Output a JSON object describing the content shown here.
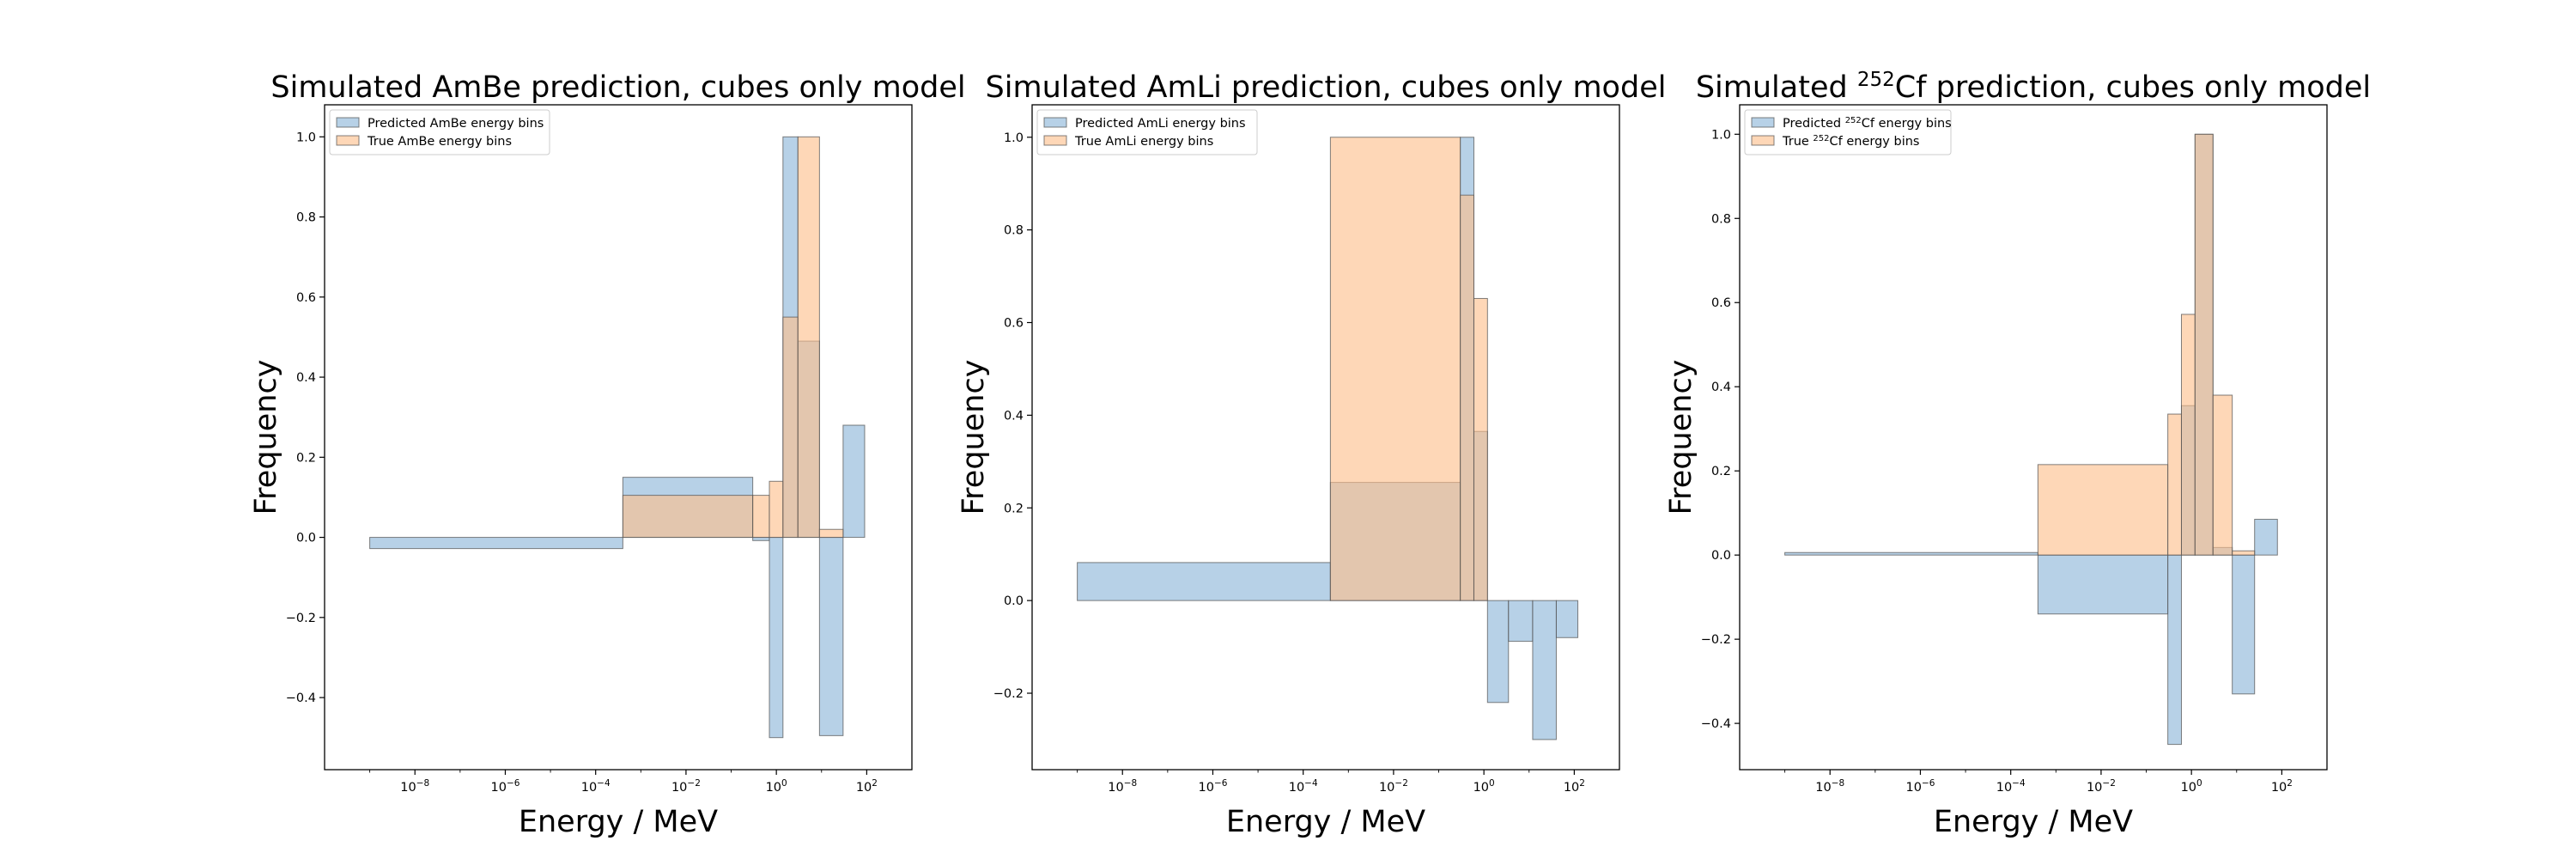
{
  "chart_data": [
    {
      "type": "bar",
      "title": "Simulated AmBe prediction, cubes only model",
      "xlabel": "Energy / MeV",
      "ylabel": "Frequency",
      "x_scale": "log",
      "xlim": [
        1e-10,
        1000
      ],
      "ylim": [
        -0.58,
        1.08
      ],
      "x_ticks": [
        {
          "value": 1e-08,
          "base": "10",
          "exp": "−8"
        },
        {
          "value": 1e-06,
          "base": "10",
          "exp": "−6"
        },
        {
          "value": 0.0001,
          "base": "10",
          "exp": "−4"
        },
        {
          "value": 0.01,
          "base": "10",
          "exp": "−2"
        },
        {
          "value": 1,
          "base": "10",
          "exp": "0"
        },
        {
          "value": 100,
          "base": "10",
          "exp": "2"
        }
      ],
      "y_ticks": [
        {
          "value": -0.4,
          "label": "−0.4"
        },
        {
          "value": -0.2,
          "label": "−0.2"
        },
        {
          "value": 0,
          "label": "0.0"
        },
        {
          "value": 0.2,
          "label": "0.2"
        },
        {
          "value": 0.4,
          "label": "0.4"
        },
        {
          "value": 0.6,
          "label": "0.6"
        },
        {
          "value": 0.8,
          "label": "0.8"
        },
        {
          "value": 1.0,
          "label": "1.0"
        }
      ],
      "legend_position": "upper left",
      "series": [
        {
          "name": "Predicted AmBe energy bins",
          "color": "#8ab4d8",
          "bars": [
            {
              "x0": 1e-09,
              "x1": 0.0004,
              "value": -0.028
            },
            {
              "x0": 0.0004,
              "x1": 0.3,
              "value": 0.15
            },
            {
              "x0": 0.3,
              "x1": 0.7,
              "value": -0.008
            },
            {
              "x0": 0.7,
              "x1": 1.4,
              "value": -0.5
            },
            {
              "x0": 1.4,
              "x1": 3.0,
              "value": 1.0
            },
            {
              "x0": 3.0,
              "x1": 9.0,
              "value": 0.49
            },
            {
              "x0": 9.0,
              "x1": 30,
              "value": -0.495
            },
            {
              "x0": 30,
              "x1": 90,
              "value": 0.28
            }
          ]
        },
        {
          "name": "True AmBe energy bins",
          "color": "#fdbf8a",
          "bars": [
            {
              "x0": 0.0004,
              "x1": 0.3,
              "value": 0.105
            },
            {
              "x0": 0.3,
              "x1": 0.7,
              "value": 0.105
            },
            {
              "x0": 0.7,
              "x1": 1.4,
              "value": 0.14
            },
            {
              "x0": 1.4,
              "x1": 3.0,
              "value": 0.55
            },
            {
              "x0": 3.0,
              "x1": 9.0,
              "value": 1.0
            },
            {
              "x0": 9.0,
              "x1": 30,
              "value": 0.02
            }
          ]
        }
      ]
    },
    {
      "type": "bar",
      "title": "Simulated AmLi prediction, cubes only model",
      "xlabel": "Energy / MeV",
      "ylabel": "Frequency",
      "x_scale": "log",
      "xlim": [
        1e-10,
        1000
      ],
      "ylim": [
        -0.365,
        1.07
      ],
      "x_ticks": [
        {
          "value": 1e-08,
          "base": "10",
          "exp": "−8"
        },
        {
          "value": 1e-06,
          "base": "10",
          "exp": "−6"
        },
        {
          "value": 0.0001,
          "base": "10",
          "exp": "−4"
        },
        {
          "value": 0.01,
          "base": "10",
          "exp": "−2"
        },
        {
          "value": 1,
          "base": "10",
          "exp": "0"
        },
        {
          "value": 100,
          "base": "10",
          "exp": "2"
        }
      ],
      "y_ticks": [
        {
          "value": -0.2,
          "label": "−0.2"
        },
        {
          "value": 0,
          "label": "0.0"
        },
        {
          "value": 0.2,
          "label": "0.2"
        },
        {
          "value": 0.4,
          "label": "0.4"
        },
        {
          "value": 0.6,
          "label": "0.6"
        },
        {
          "value": 0.8,
          "label": "0.8"
        },
        {
          "value": 1.0,
          "label": "1.0"
        }
      ],
      "legend_position": "upper left",
      "series": [
        {
          "name": "Predicted AmLi energy bins",
          "color": "#8ab4d8",
          "bars": [
            {
              "x0": 1e-09,
              "x1": 0.0004,
              "value": 0.082
            },
            {
              "x0": 0.0004,
              "x1": 0.3,
              "value": 0.255
            },
            {
              "x0": 0.3,
              "x1": 0.6,
              "value": 1.0
            },
            {
              "x0": 0.6,
              "x1": 1.2,
              "value": 0.365
            },
            {
              "x0": 1.2,
              "x1": 3.5,
              "value": -0.22
            },
            {
              "x0": 3.5,
              "x1": 12,
              "value": -0.088
            },
            {
              "x0": 12,
              "x1": 40,
              "value": -0.3
            },
            {
              "x0": 40,
              "x1": 120,
              "value": -0.08
            }
          ]
        },
        {
          "name": "True AmLi energy bins",
          "color": "#fdbf8a",
          "bars": [
            {
              "x0": 0.0004,
              "x1": 0.3,
              "value": 1.0
            },
            {
              "x0": 0.3,
              "x1": 0.6,
              "value": 0.875
            },
            {
              "x0": 0.6,
              "x1": 1.2,
              "value": 0.652
            }
          ]
        }
      ]
    },
    {
      "type": "bar",
      "title_parts": {
        "pre": "Simulated ",
        "sup": "252",
        "post": "Cf prediction, cubes only model"
      },
      "xlabel": "Energy / MeV",
      "ylabel": "Frequency",
      "x_scale": "log",
      "xlim": [
        1e-10,
        1000
      ],
      "ylim": [
        -0.51,
        1.07
      ],
      "x_ticks": [
        {
          "value": 1e-08,
          "base": "10",
          "exp": "−8"
        },
        {
          "value": 1e-06,
          "base": "10",
          "exp": "−6"
        },
        {
          "value": 0.0001,
          "base": "10",
          "exp": "−4"
        },
        {
          "value": 0.01,
          "base": "10",
          "exp": "−2"
        },
        {
          "value": 1,
          "base": "10",
          "exp": "0"
        },
        {
          "value": 100,
          "base": "10",
          "exp": "2"
        }
      ],
      "y_ticks": [
        {
          "value": -0.4,
          "label": "−0.4"
        },
        {
          "value": -0.2,
          "label": "−0.2"
        },
        {
          "value": 0,
          "label": "0.0"
        },
        {
          "value": 0.2,
          "label": "0.2"
        },
        {
          "value": 0.4,
          "label": "0.4"
        },
        {
          "value": 0.6,
          "label": "0.6"
        },
        {
          "value": 0.8,
          "label": "0.8"
        },
        {
          "value": 1.0,
          "label": "1.0"
        }
      ],
      "legend_position": "upper left",
      "series": [
        {
          "name_parts": {
            "pre": "Predicted ",
            "sup": "252",
            "post": "Cf energy bins"
          },
          "color": "#8ab4d8",
          "bars": [
            {
              "x0": 1e-09,
              "x1": 0.0004,
              "value": 0.006
            },
            {
              "x0": 0.0004,
              "x1": 0.3,
              "value": -0.14
            },
            {
              "x0": 0.3,
              "x1": 0.6,
              "value": -0.45
            },
            {
              "x0": 0.6,
              "x1": 1.2,
              "value": 0.355
            },
            {
              "x0": 1.2,
              "x1": 3.0,
              "value": 1.0
            },
            {
              "x0": 3.0,
              "x1": 8.0,
              "value": 0.018
            },
            {
              "x0": 8.0,
              "x1": 25,
              "value": -0.33
            },
            {
              "x0": 25,
              "x1": 80,
              "value": 0.085
            }
          ]
        },
        {
          "name_parts": {
            "pre": "True ",
            "sup": "252",
            "post": "Cf energy bins"
          },
          "color": "#fdbf8a",
          "bars": [
            {
              "x0": 0.0004,
              "x1": 0.3,
              "value": 0.215
            },
            {
              "x0": 0.3,
              "x1": 0.6,
              "value": 0.335
            },
            {
              "x0": 0.6,
              "x1": 1.2,
              "value": 0.572
            },
            {
              "x0": 1.2,
              "x1": 3.0,
              "value": 1.0
            },
            {
              "x0": 3.0,
              "x1": 8.0,
              "value": 0.38
            },
            {
              "x0": 8.0,
              "x1": 25,
              "value": 0.01
            }
          ]
        }
      ]
    }
  ]
}
